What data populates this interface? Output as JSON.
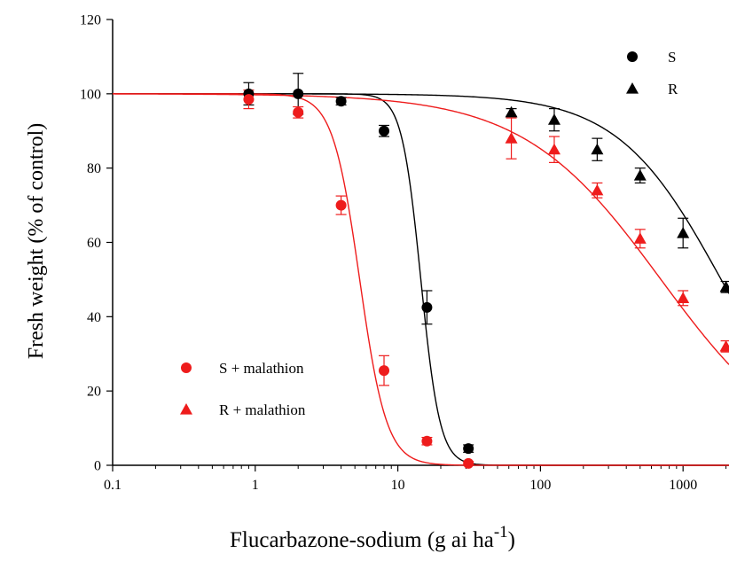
{
  "chart_data": {
    "type": "scatter",
    "title": "",
    "xlabel": "Flucarbazone-sodium (g ai ha",
    "xlabel_superscript": "-1",
    "xlabel_suffix": ")",
    "ylabel": "Fresh weight (% of control)",
    "xscale": "log",
    "xlim": [
      0.1,
      2100
    ],
    "ylim": [
      0,
      120
    ],
    "xticks": [
      {
        "value": 0.1,
        "label": "0.1"
      },
      {
        "value": 1,
        "label": "1"
      },
      {
        "value": 10,
        "label": "10"
      },
      {
        "value": 100,
        "label": "100"
      },
      {
        "value": 1000,
        "label": "1000"
      }
    ],
    "yticks": [
      {
        "value": 0,
        "label": "0"
      },
      {
        "value": 20,
        "label": "20"
      },
      {
        "value": 40,
        "label": "40"
      },
      {
        "value": 60,
        "label": "60"
      },
      {
        "value": 80,
        "label": "80"
      },
      {
        "value": 100,
        "label": "100"
      },
      {
        "value": 120,
        "label": "120"
      }
    ],
    "grid": false,
    "legends": [
      {
        "placement": "top-right",
        "entries": [
          "S",
          "R"
        ]
      },
      {
        "placement": "bottom-left",
        "entries": [
          "S + malathion",
          "R + malathion"
        ]
      }
    ],
    "series": [
      {
        "name": "S",
        "marker": "circle",
        "color": "#000000",
        "x": [
          0.9,
          2,
          4,
          8,
          16,
          31.25
        ],
        "y": [
          100,
          100,
          98,
          90,
          42.5,
          4.5
        ],
        "err": [
          3,
          5.5,
          1,
          1.5,
          4.5,
          1
        ],
        "fit": {
          "ed50": 14.5,
          "slope": 6.5
        }
      },
      {
        "name": "R",
        "marker": "triangle",
        "color": "#000000",
        "x": [
          62.5,
          125,
          250,
          500,
          1000,
          2000
        ],
        "y": [
          95,
          93,
          85,
          78,
          62.5,
          48
        ],
        "err": [
          1,
          3,
          3,
          2,
          4,
          1.5
        ],
        "fit": {
          "ed50": 1850,
          "slope": 1.2
        }
      },
      {
        "name": "S + malathion",
        "marker": "circle",
        "color": "#ee1c1c",
        "x": [
          0.9,
          2,
          4,
          8,
          16,
          31.25
        ],
        "y": [
          98.5,
          95,
          70,
          25.5,
          6.5,
          0.5
        ],
        "err": [
          2.5,
          1.5,
          2.5,
          4,
          1,
          0.5
        ],
        "fit": {
          "ed50": 5.4,
          "slope": 4.6
        }
      },
      {
        "name": "R + malathion",
        "marker": "triangle",
        "color": "#ee1c1c",
        "x": [
          62.5,
          125,
          250,
          500,
          1000,
          2000
        ],
        "y": [
          88,
          85,
          74,
          61,
          45,
          32
        ],
        "err": [
          5.5,
          3.5,
          2,
          2.5,
          2,
          1.5
        ],
        "fit": {
          "ed50": 700,
          "slope": 0.9
        }
      }
    ]
  }
}
